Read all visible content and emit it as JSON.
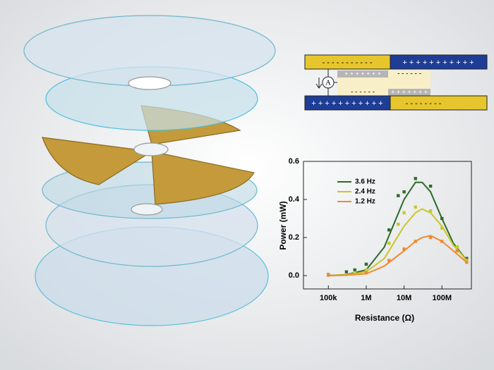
{
  "schematic": {
    "top_left": "- - - - - - - - - - -",
    "top_right": "+ + + + + + + + + + +",
    "mid_upper_left": "+ + + + + + +",
    "mid_upper_right": "- - - - - -",
    "mid_lower_left": "- - - - - -",
    "mid_lower_right": "+ + + + + + +",
    "bottom_left": "+ + + + + + + + + + +",
    "bottom_right": "- - - - - - - -",
    "ammeter": "A"
  },
  "chart_data": {
    "type": "scatter",
    "xlabel": "Resistance (Ω)",
    "ylabel": "Power (mW)",
    "xscale": "log",
    "xlim": [
      22000,
      600000000
    ],
    "ylim": [
      -0.07,
      0.6
    ],
    "xticks": [
      {
        "value": 100000,
        "label": "100k"
      },
      {
        "value": 1000000,
        "label": "1M"
      },
      {
        "value": 10000000,
        "label": "10M"
      },
      {
        "value": 100000000,
        "label": "100M"
      }
    ],
    "yticks": [
      {
        "value": 0,
        "label": "0.0"
      },
      0.2,
      0.4,
      0.6
    ],
    "legend": "upper left",
    "fit_x": [
      100000,
      300000,
      1000000,
      3000000,
      10000000,
      20000000,
      30000000,
      50000000,
      100000000,
      200000000,
      450000000
    ],
    "series": [
      {
        "name": "3.6 Hz",
        "color": "#2f6b2a",
        "x": [
          100000,
          300000,
          500000,
          1000000,
          4000000,
          7000000,
          10000000,
          20000000,
          50000000,
          100000000,
          250000000,
          450000000
        ],
        "values": [
          0.005,
          0.02,
          0.03,
          0.06,
          0.24,
          0.42,
          0.44,
          0.51,
          0.47,
          0.3,
          0.15,
          0.09
        ],
        "fit_values": [
          0.001,
          0.005,
          0.03,
          0.15,
          0.4,
          0.49,
          0.49,
          0.44,
          0.3,
          0.17,
          0.08
        ]
      },
      {
        "name": "2.4 Hz",
        "color": "#c9c72c",
        "x": [
          100000,
          500000,
          1000000,
          4000000,
          7000000,
          10000000,
          20000000,
          50000000,
          100000000,
          250000000,
          450000000
        ],
        "values": [
          0.003,
          0.015,
          0.03,
          0.17,
          0.27,
          0.33,
          0.36,
          0.34,
          0.25,
          0.15,
          0.08
        ],
        "fit_values": [
          0.001,
          0.004,
          0.02,
          0.09,
          0.26,
          0.33,
          0.35,
          0.33,
          0.26,
          0.16,
          0.08
        ]
      },
      {
        "name": "1.2 Hz",
        "color": "#f08a30",
        "x": [
          100000,
          1000000,
          4000000,
          10000000,
          20000000,
          50000000,
          100000000,
          250000000,
          450000000
        ],
        "values": [
          0.002,
          0.015,
          0.08,
          0.14,
          0.18,
          0.2,
          0.18,
          0.13,
          0.07
        ],
        "fit_values": [
          0,
          0.002,
          0.01,
          0.05,
          0.13,
          0.18,
          0.2,
          0.21,
          0.18,
          0.13,
          0.07
        ]
      }
    ]
  }
}
